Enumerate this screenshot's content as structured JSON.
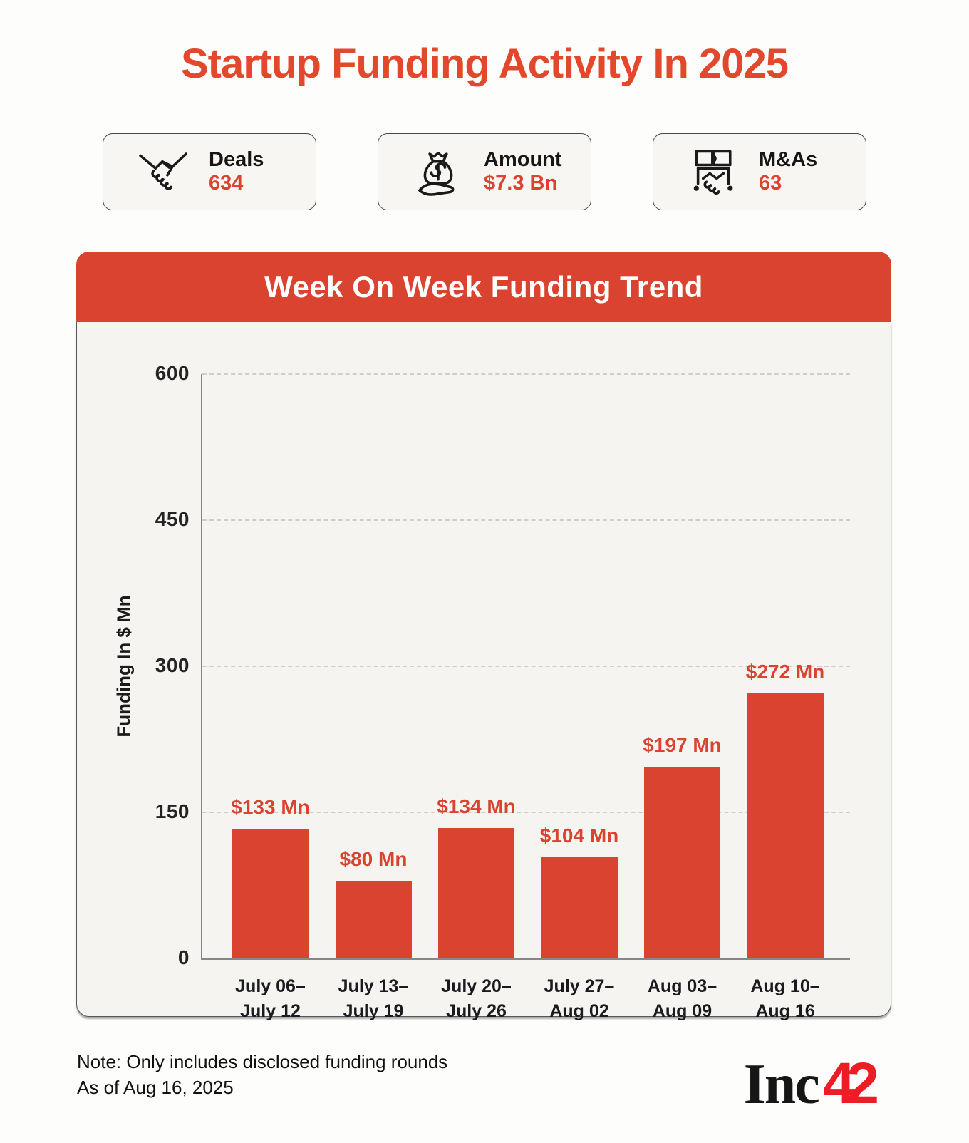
{
  "page": {
    "title": "Startup Funding Activity In 2025"
  },
  "stats": [
    {
      "icon": "handshake-icon",
      "label": "Deals",
      "value": "634"
    },
    {
      "icon": "money-bag-hand-icon",
      "label": "Amount",
      "value": "$7.3 Bn"
    },
    {
      "icon": "puzzle-handshake-icon",
      "label": "M&As",
      "value": "63"
    }
  ],
  "chart": {
    "title": "Week On Week Funding Trend"
  },
  "chart_data": {
    "type": "bar",
    "title": "Week On Week Funding Trend",
    "categories": [
      {
        "line1": "July 06–",
        "line2": "July 12"
      },
      {
        "line1": "July 13–",
        "line2": "July 19"
      },
      {
        "line1": "July 20–",
        "line2": "July 26"
      },
      {
        "line1": "July 27–",
        "line2": "Aug 02"
      },
      {
        "line1": "Aug 03–",
        "line2": "Aug 09"
      },
      {
        "line1": "Aug 10–",
        "line2": "Aug 16"
      }
    ],
    "values": [
      133,
      80,
      134,
      104,
      197,
      272
    ],
    "value_labels": [
      "$133 Mn",
      "$80 Mn",
      "$134 Mn",
      "$104 Mn",
      "$197 Mn",
      "$272 Mn"
    ],
    "xlabel": "",
    "ylabel": "Funding In $ Mn",
    "yticks": [
      0,
      150,
      300,
      450,
      600
    ],
    "ylim": [
      0,
      600
    ],
    "grid": "horizontal-dashed",
    "legend": "none",
    "bar_color": "#d9432f"
  },
  "footer": {
    "note_line1": "Note: Only includes disclosed funding rounds",
    "note_line2": "As of Aug 16, 2025",
    "logo_text": "Inc",
    "logo_accent": "42"
  },
  "colors": {
    "accent": "#d9432f",
    "title_red": "#e2492c",
    "logo_red": "#ee1c25",
    "panel_bg": "#f5f4f1",
    "card_bg": "#f7f6f3",
    "page_bg": "#fdfdfb"
  }
}
